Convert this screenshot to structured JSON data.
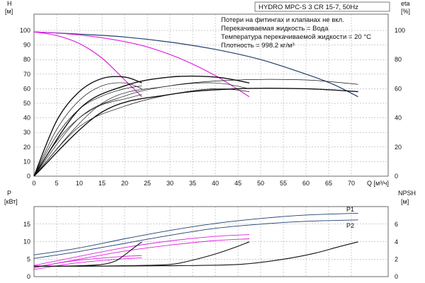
{
  "chart_data": [
    {
      "type": "line",
      "title": "HYDRO MPC-S 3 CR 15-7, 50Hz",
      "annotations": [
        "Потери на фитингах и клапанах не вкл.",
        "Перекачиваемая жидкость = Вода",
        "Температура перекачиваемой жидкости = 20 °C",
        "Плотность = 998.2 кг/м³"
      ],
      "left_axis": {
        "label": "H",
        "unit": "[м]",
        "range": [
          0,
          110
        ],
        "ticks": [
          0,
          10,
          20,
          30,
          40,
          50,
          60,
          70,
          80,
          90,
          100
        ]
      },
      "right_axis": {
        "label": "eta",
        "unit": "[%]",
        "range": [
          0,
          110
        ],
        "ticks": [
          0,
          20,
          40,
          60,
          80,
          100
        ]
      },
      "x_axis": {
        "label": "Q [м³/ч]",
        "range": [
          0,
          78
        ],
        "ticks": [
          0,
          5,
          10,
          15,
          20,
          25,
          30,
          35,
          40,
          45,
          50,
          55,
          60,
          65,
          70
        ]
      },
      "series": [
        {
          "axis": "left",
          "color": "#1f3f6e",
          "x": [
            0,
            10,
            20,
            30,
            40,
            50,
            60,
            66,
            71.5
          ],
          "y": [
            99,
            97.5,
            95.5,
            92,
            87,
            80,
            70,
            63,
            54.5
          ]
        },
        {
          "axis": "left",
          "color": "#e020e0",
          "x": [
            0,
            8,
            16,
            24,
            32,
            40,
            47.5
          ],
          "y": [
            99,
            97.5,
            94.5,
            89.5,
            81,
            69,
            54.5
          ]
        },
        {
          "axis": "left",
          "color": "#e020e0",
          "x": [
            0,
            5,
            10,
            15,
            20,
            23.8
          ],
          "y": [
            99,
            96.5,
            91,
            81,
            66,
            54.5
          ]
        },
        {
          "axis": "right",
          "color": "#111111",
          "x": [
            0,
            5,
            10,
            15,
            20,
            23.8
          ],
          "y": [
            0,
            38,
            58,
            67,
            68,
            64
          ]
        },
        {
          "axis": "right",
          "color": "#111111",
          "x": [
            0,
            5,
            10,
            15,
            20,
            23.8
          ],
          "y": [
            0,
            32,
            52,
            62,
            64,
            60
          ]
        },
        {
          "axis": "right",
          "color": "#111111",
          "x": [
            0,
            5,
            10,
            15,
            20,
            23.8
          ],
          "y": [
            0,
            28,
            46,
            55,
            60,
            62
          ]
        },
        {
          "axis": "right",
          "color": "#111111",
          "x": [
            0,
            5,
            10,
            15,
            20,
            23.8
          ],
          "y": [
            0,
            24,
            40,
            49,
            53,
            56
          ]
        },
        {
          "axis": "right",
          "color": "#111111",
          "x": [
            0,
            10,
            20,
            30,
            40,
            47.5
          ],
          "y": [
            0,
            46,
            62,
            68,
            68,
            64
          ]
        },
        {
          "axis": "right",
          "color": "#111111",
          "x": [
            0,
            10,
            20,
            30,
            40,
            47.5
          ],
          "y": [
            0,
            40,
            55,
            62,
            64,
            60
          ]
        },
        {
          "axis": "right",
          "color": "#111111",
          "x": [
            0,
            10,
            20,
            30,
            40,
            47.5
          ],
          "y": [
            0,
            34,
            48,
            56,
            60,
            58
          ]
        },
        {
          "axis": "right",
          "color": "#111111",
          "x": [
            0,
            15,
            30,
            45,
            60,
            71.5
          ],
          "y": [
            0,
            50,
            62,
            66,
            66,
            63
          ]
        },
        {
          "axis": "right",
          "color": "#111111",
          "x": [
            0,
            15,
            30,
            45,
            60,
            71.5
          ],
          "y": [
            0,
            44,
            56,
            60,
            60,
            58
          ]
        }
      ]
    },
    {
      "type": "line",
      "left_axis": {
        "label": "P",
        "unit": "[кВт]",
        "range": [
          0,
          20
        ],
        "ticks": [
          0,
          5,
          10,
          15
        ]
      },
      "right_axis": {
        "label": "NPSH",
        "unit": "[м]",
        "range": [
          0,
          8
        ],
        "ticks": [
          0,
          2,
          4,
          6
        ]
      },
      "x_axis": {
        "range": [
          0,
          78
        ]
      },
      "series": [
        {
          "name": "P1",
          "axis": "left",
          "color": "#1f3f6e",
          "x": [
            0,
            10,
            20,
            30,
            40,
            50,
            60,
            71.5
          ],
          "y": [
            6.2,
            8.2,
            10.8,
            13.2,
            15.2,
            16.6,
            17.6,
            18.1
          ]
        },
        {
          "name": "P2",
          "axis": "left",
          "color": "#1f3f6e",
          "x": [
            0,
            10,
            20,
            30,
            40,
            50,
            60,
            71.5
          ],
          "y": [
            5.2,
            7.2,
            9.5,
            11.8,
            13.8,
            15.0,
            15.8,
            16.2
          ]
        },
        {
          "axis": "left",
          "color": "#e020e0",
          "x": [
            0,
            10,
            20,
            30,
            40,
            47.5
          ],
          "y": [
            3.2,
            5.8,
            8.3,
            10.2,
            11.5,
            12.0
          ]
        },
        {
          "axis": "left",
          "color": "#e020e0",
          "x": [
            0,
            10,
            20,
            30,
            40,
            47.5
          ],
          "y": [
            2.6,
            5.0,
            7.3,
            9.0,
            10.3,
            10.8
          ]
        },
        {
          "axis": "left",
          "color": "#e020e0",
          "x": [
            0,
            5,
            10,
            15,
            20,
            23.8
          ],
          "y": [
            2.5,
            3.8,
            4.7,
            5.3,
            5.8,
            6.0
          ]
        },
        {
          "axis": "left",
          "color": "#e020e0",
          "x": [
            0,
            5,
            10,
            15,
            20,
            23.8
          ],
          "y": [
            2.0,
            3.1,
            4.0,
            4.6,
            5.1,
            5.4
          ]
        },
        {
          "axis": "right",
          "color": "#111111",
          "x": [
            0,
            5,
            10,
            15,
            18,
            20,
            22,
            23.8
          ],
          "y": [
            1.2,
            1.2,
            1.25,
            1.4,
            1.8,
            2.5,
            3.3,
            4.0
          ]
        },
        {
          "axis": "right",
          "color": "#111111",
          "x": [
            0,
            10,
            20,
            30,
            35,
            40,
            44,
            47.5
          ],
          "y": [
            1.2,
            1.2,
            1.25,
            1.4,
            1.9,
            2.6,
            3.3,
            4.0
          ]
        },
        {
          "axis": "right",
          "color": "#111111",
          "x": [
            0,
            15,
            30,
            45,
            55,
            62,
            67,
            71.5
          ],
          "y": [
            1.2,
            1.2,
            1.25,
            1.4,
            2.0,
            2.7,
            3.4,
            4.0
          ]
        }
      ]
    }
  ]
}
